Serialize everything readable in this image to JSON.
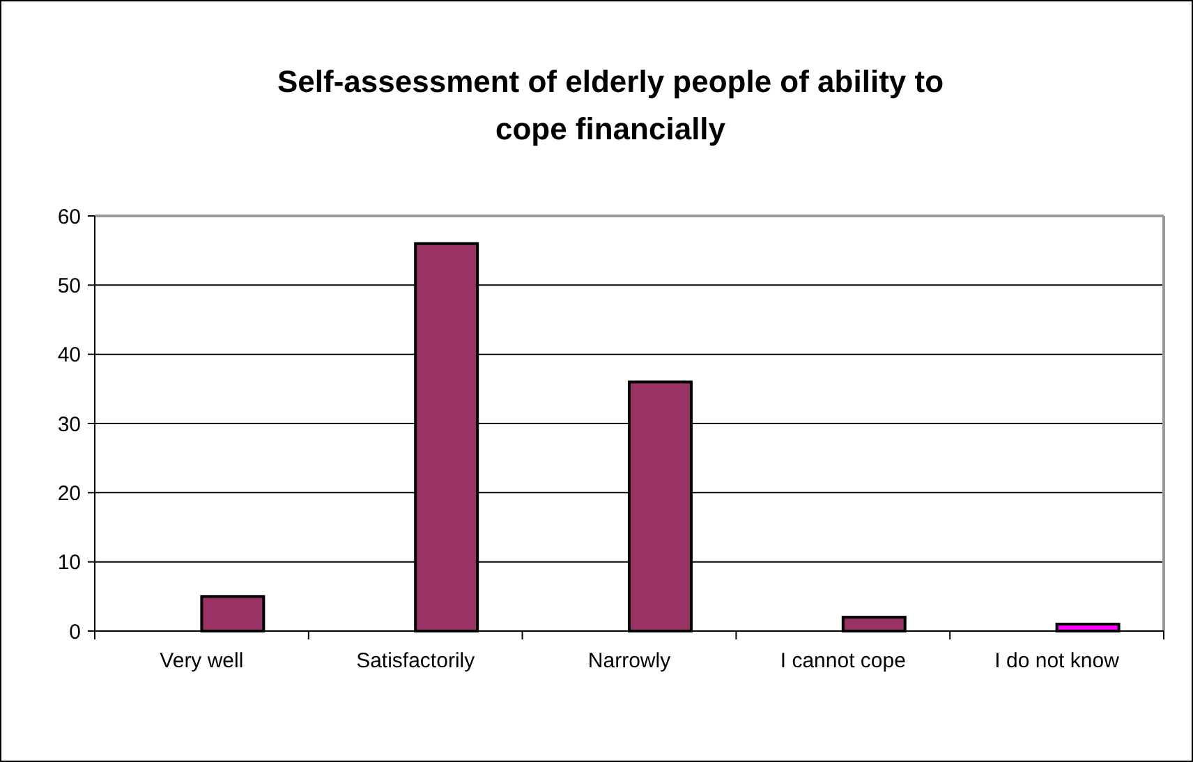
{
  "chart_data": {
    "type": "bar",
    "title": "Self-assessment of elderly people of ability to cope financially",
    "categories": [
      "Very well",
      "Satisfactorily",
      "Narrowly",
      "I cannot cope",
      "I do not know"
    ],
    "values": [
      5,
      56,
      36,
      2,
      1
    ],
    "colors": [
      "#993366",
      "#993366",
      "#993366",
      "#993366",
      "#ff00ff"
    ],
    "ylim": [
      0,
      60
    ],
    "yticks": [
      0,
      10,
      20,
      30,
      40,
      50,
      60
    ],
    "grid": "y"
  }
}
